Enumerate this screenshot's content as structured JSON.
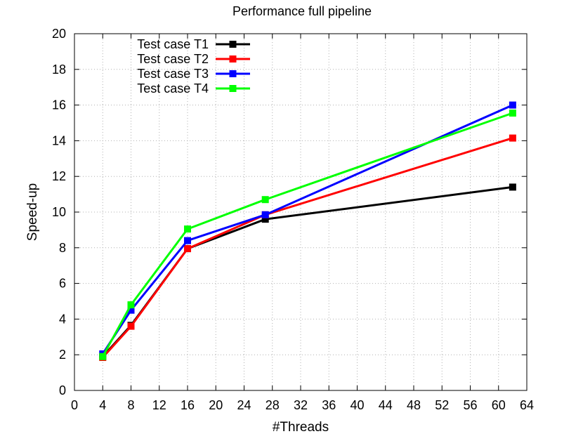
{
  "chart_data": {
    "type": "line",
    "title": "Performance full pipeline",
    "xlabel": "#Threads",
    "ylabel": "Speed-up",
    "xlim": [
      0,
      64
    ],
    "ylim": [
      0,
      20
    ],
    "xticks": [
      0,
      4,
      8,
      12,
      16,
      20,
      24,
      28,
      32,
      36,
      40,
      44,
      48,
      52,
      56,
      60,
      64
    ],
    "yticks": [
      0,
      2,
      4,
      6,
      8,
      10,
      12,
      14,
      16,
      18,
      20
    ],
    "grid": true,
    "legend_position": "top-left",
    "x": [
      4,
      8,
      16,
      27,
      62
    ],
    "series": [
      {
        "name": "Test case T1",
        "color": "#000000",
        "values": [
          1.9,
          3.65,
          7.95,
          9.6,
          11.4
        ]
      },
      {
        "name": "Test case T2",
        "color": "#ff0000",
        "values": [
          1.85,
          3.6,
          7.95,
          9.85,
          14.15
        ]
      },
      {
        "name": "Test case T3",
        "color": "#0000ff",
        "values": [
          2.05,
          4.5,
          8.4,
          9.85,
          16.0
        ]
      },
      {
        "name": "Test case T4",
        "color": "#00ff00",
        "values": [
          1.9,
          4.8,
          9.05,
          10.7,
          15.55
        ]
      }
    ]
  }
}
